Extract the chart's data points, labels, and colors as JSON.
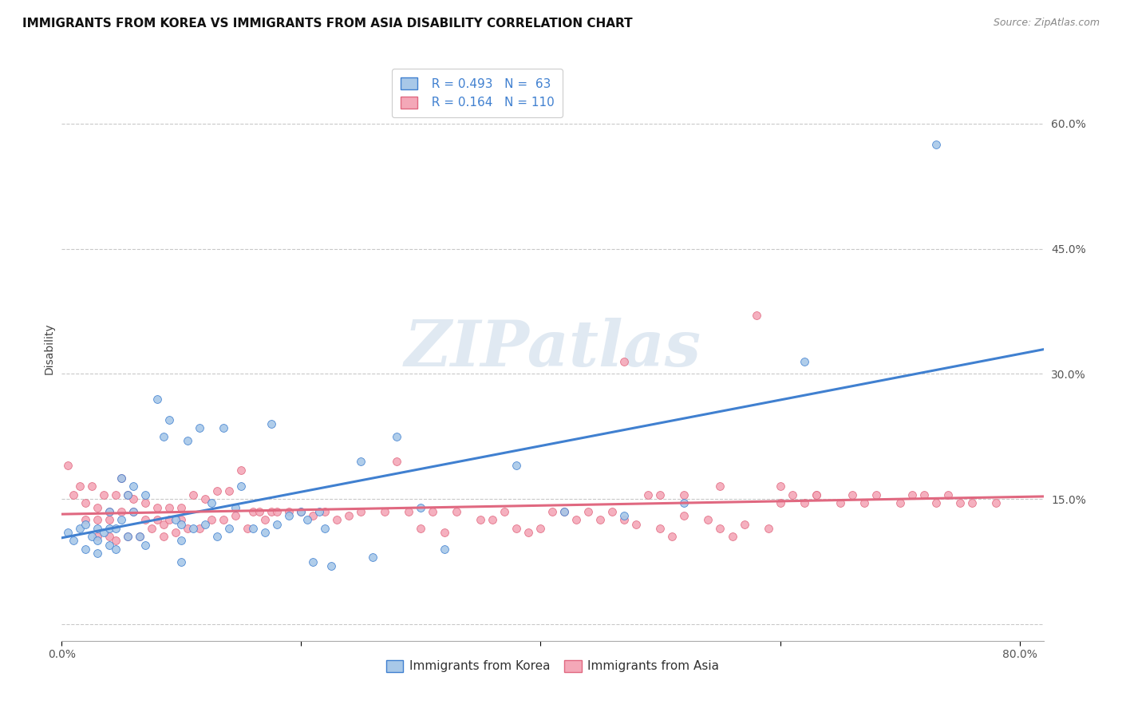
{
  "title": "IMMIGRANTS FROM KOREA VS IMMIGRANTS FROM ASIA DISABILITY CORRELATION CHART",
  "source": "Source: ZipAtlas.com",
  "ylabel": "Disability",
  "xlim": [
    0.0,
    0.82
  ],
  "ylim": [
    -0.02,
    0.68
  ],
  "korea_R": 0.493,
  "korea_N": 63,
  "asia_R": 0.164,
  "asia_N": 110,
  "korea_color": "#a8c8e8",
  "asia_color": "#f4a8b8",
  "korea_line_color": "#4080d0",
  "asia_line_color": "#e06880",
  "legend_text_color": "#4080d0",
  "watermark_color": "#c8d8e8",
  "korea_x": [
    0.005,
    0.01,
    0.015,
    0.02,
    0.02,
    0.025,
    0.03,
    0.03,
    0.03,
    0.035,
    0.04,
    0.04,
    0.04,
    0.045,
    0.045,
    0.05,
    0.05,
    0.055,
    0.055,
    0.06,
    0.06,
    0.065,
    0.07,
    0.07,
    0.08,
    0.085,
    0.09,
    0.095,
    0.1,
    0.1,
    0.1,
    0.105,
    0.11,
    0.115,
    0.12,
    0.125,
    0.13,
    0.135,
    0.14,
    0.145,
    0.15,
    0.16,
    0.17,
    0.175,
    0.18,
    0.19,
    0.2,
    0.205,
    0.21,
    0.215,
    0.22,
    0.225,
    0.25,
    0.26,
    0.28,
    0.3,
    0.32,
    0.38,
    0.42,
    0.47,
    0.52,
    0.62,
    0.73
  ],
  "korea_y": [
    0.11,
    0.1,
    0.115,
    0.12,
    0.09,
    0.105,
    0.115,
    0.1,
    0.085,
    0.11,
    0.135,
    0.115,
    0.095,
    0.115,
    0.09,
    0.175,
    0.125,
    0.155,
    0.105,
    0.165,
    0.135,
    0.105,
    0.155,
    0.095,
    0.27,
    0.225,
    0.245,
    0.125,
    0.12,
    0.1,
    0.075,
    0.22,
    0.115,
    0.235,
    0.12,
    0.145,
    0.105,
    0.235,
    0.115,
    0.14,
    0.165,
    0.115,
    0.11,
    0.24,
    0.12,
    0.13,
    0.135,
    0.125,
    0.075,
    0.135,
    0.115,
    0.07,
    0.195,
    0.08,
    0.225,
    0.14,
    0.09,
    0.19,
    0.135,
    0.13,
    0.145,
    0.315,
    0.575
  ],
  "asia_x": [
    0.005,
    0.01,
    0.015,
    0.02,
    0.02,
    0.025,
    0.03,
    0.03,
    0.03,
    0.035,
    0.04,
    0.04,
    0.04,
    0.045,
    0.045,
    0.05,
    0.05,
    0.055,
    0.055,
    0.06,
    0.06,
    0.065,
    0.07,
    0.07,
    0.075,
    0.08,
    0.08,
    0.085,
    0.085,
    0.09,
    0.09,
    0.095,
    0.1,
    0.1,
    0.105,
    0.11,
    0.115,
    0.12,
    0.125,
    0.13,
    0.135,
    0.14,
    0.145,
    0.15,
    0.155,
    0.16,
    0.165,
    0.17,
    0.175,
    0.18,
    0.19,
    0.2,
    0.21,
    0.22,
    0.23,
    0.24,
    0.25,
    0.27,
    0.28,
    0.29,
    0.3,
    0.31,
    0.32,
    0.33,
    0.35,
    0.36,
    0.37,
    0.38,
    0.39,
    0.4,
    0.41,
    0.42,
    0.43,
    0.44,
    0.45,
    0.46,
    0.47,
    0.48,
    0.5,
    0.52,
    0.54,
    0.55,
    0.57,
    0.59,
    0.6,
    0.61,
    0.62,
    0.63,
    0.65,
    0.66,
    0.67,
    0.68,
    0.7,
    0.71,
    0.72,
    0.73,
    0.74,
    0.75,
    0.76,
    0.78,
    0.47,
    0.49,
    0.51,
    0.56,
    0.58,
    0.63,
    0.5,
    0.52,
    0.55,
    0.6
  ],
  "asia_y": [
    0.19,
    0.155,
    0.165,
    0.145,
    0.125,
    0.165,
    0.14,
    0.125,
    0.105,
    0.155,
    0.135,
    0.125,
    0.105,
    0.155,
    0.1,
    0.175,
    0.135,
    0.155,
    0.105,
    0.15,
    0.135,
    0.105,
    0.145,
    0.125,
    0.115,
    0.14,
    0.125,
    0.12,
    0.105,
    0.14,
    0.125,
    0.11,
    0.14,
    0.125,
    0.115,
    0.155,
    0.115,
    0.15,
    0.125,
    0.16,
    0.125,
    0.16,
    0.13,
    0.185,
    0.115,
    0.135,
    0.135,
    0.125,
    0.135,
    0.135,
    0.135,
    0.135,
    0.13,
    0.135,
    0.125,
    0.13,
    0.135,
    0.135,
    0.195,
    0.135,
    0.115,
    0.135,
    0.11,
    0.135,
    0.125,
    0.125,
    0.135,
    0.115,
    0.11,
    0.115,
    0.135,
    0.135,
    0.125,
    0.135,
    0.125,
    0.135,
    0.125,
    0.12,
    0.115,
    0.13,
    0.125,
    0.115,
    0.12,
    0.115,
    0.145,
    0.155,
    0.145,
    0.155,
    0.145,
    0.155,
    0.145,
    0.155,
    0.145,
    0.155,
    0.155,
    0.145,
    0.155,
    0.145,
    0.145,
    0.145,
    0.315,
    0.155,
    0.105,
    0.105,
    0.37,
    0.155,
    0.155,
    0.155,
    0.165,
    0.165
  ]
}
